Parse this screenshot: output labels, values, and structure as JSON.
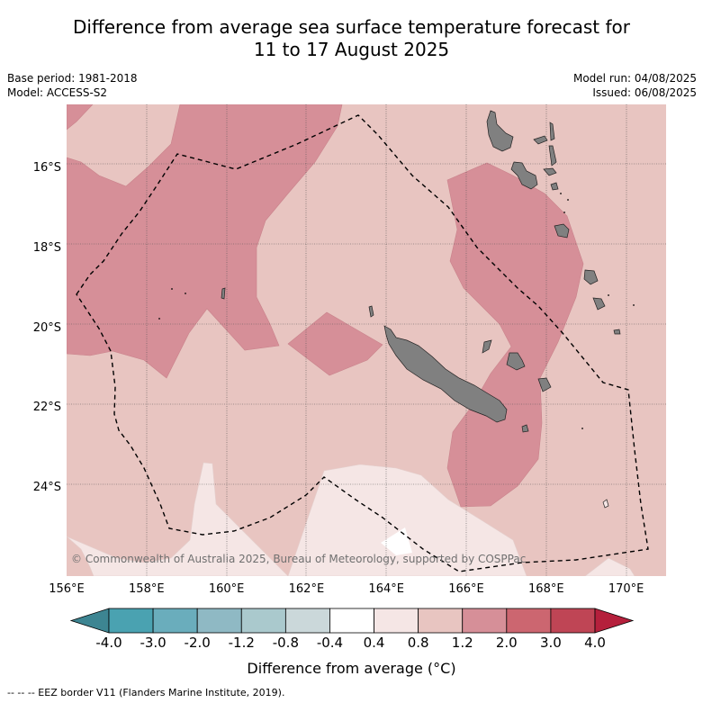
{
  "title": "Difference from average sea surface temperature forecast for 11 to 17 August 2025",
  "title_line1": "Difference from average sea surface temperature forecast for",
  "title_line2": "11 to 17 August 2025",
  "meta": {
    "base_period": "Base period: 1981-2018",
    "model": "Model: ACCESS-S2",
    "model_run": "Model run: 04/08/2025",
    "issued": "Issued: 06/08/2025"
  },
  "map": {
    "lon_range": [
      156,
      171
    ],
    "lat_range": [
      -26.2,
      -14.4
    ],
    "lon_ticks": [
      "156°E",
      "158°E",
      "160°E",
      "162°E",
      "164°E",
      "166°E",
      "168°E",
      "170°E"
    ],
    "lat_ticks": [
      "16°S",
      "18°S",
      "20°S",
      "22°S",
      "24°S"
    ],
    "copyright": "© Commonwealth of Australia 2025, Bureau of Meteorology, supported by COSPPac",
    "grid": true
  },
  "colorbar": {
    "label": "Difference from average (°C)",
    "ticks": [
      "-4.0",
      "-3.0",
      "-2.0",
      "-1.2",
      "-0.8",
      "-0.4",
      "0.4",
      "0.8",
      "1.2",
      "2.0",
      "3.0",
      "4.0"
    ],
    "colors": [
      "#4aa2b1",
      "#6aadbc",
      "#8fb9c4",
      "#aac9cd",
      "#cbd8da",
      "#ffffff",
      "#f5e6e5",
      "#e8c5c1",
      "#d68f98",
      "#cc6670",
      "#bf4555"
    ],
    "under_color": "#3d8592",
    "over_color": "#b5203c"
  },
  "legend": {
    "eez": "-- -- -- EEZ border V11 (Flanders Marine Institute, 2019)."
  }
}
